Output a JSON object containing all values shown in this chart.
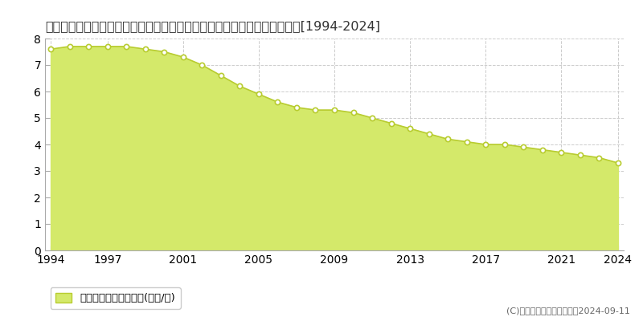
{
  "title": "長野県上水内郡信濃町大字古間字切通し９２５番２　地価公示　地価推移[1994-2024]",
  "years": [
    1994,
    1995,
    1996,
    1997,
    1998,
    1999,
    2000,
    2001,
    2002,
    2003,
    2004,
    2005,
    2006,
    2007,
    2008,
    2009,
    2010,
    2011,
    2012,
    2013,
    2014,
    2015,
    2016,
    2017,
    2018,
    2019,
    2020,
    2021,
    2022,
    2023,
    2024
  ],
  "values": [
    7.6,
    7.7,
    7.7,
    7.7,
    7.7,
    7.6,
    7.5,
    7.3,
    7.0,
    6.6,
    6.2,
    5.9,
    5.6,
    5.4,
    5.3,
    5.3,
    5.2,
    5.0,
    4.8,
    4.6,
    4.4,
    4.2,
    4.1,
    4.0,
    4.0,
    3.9,
    3.8,
    3.7,
    3.6,
    3.5,
    3.3
  ],
  "fill_color": "#d4e96a",
  "line_color": "#b8cc30",
  "marker_color": "#ffffff",
  "marker_edge_color": "#b8cc30",
  "background_color": "#ffffff",
  "plot_bg_color": "#ffffff",
  "grid_color": "#cccccc",
  "ylim": [
    0,
    8
  ],
  "yticks": [
    0,
    1,
    2,
    3,
    4,
    5,
    6,
    7,
    8
  ],
  "xticks": [
    1994,
    1997,
    2001,
    2005,
    2009,
    2013,
    2017,
    2021,
    2024
  ],
  "legend_label": "地価公示　平均嵪単価(万円/嵪)",
  "copyright_text": "(C)土地価格ドットコム　　2024-09-11",
  "title_fontsize": 11.5,
  "tick_fontsize": 10,
  "legend_fontsize": 9.5
}
